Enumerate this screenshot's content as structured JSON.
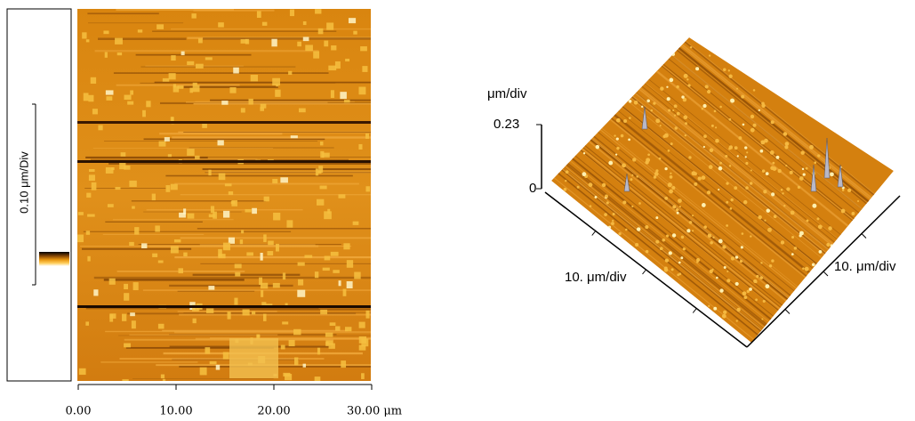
{
  "topography_2d": {
    "scale_label": "0.10 μm/Div",
    "x_ticks": [
      "0.00",
      "10.00",
      "20.00",
      "30.00 μm"
    ]
  },
  "topography_3d": {
    "z_unit": "μm/div",
    "z_max": "0.23",
    "z_min": "0",
    "x_axis_label": "10. μm/div",
    "y_axis_label": "10. μm/div"
  }
}
